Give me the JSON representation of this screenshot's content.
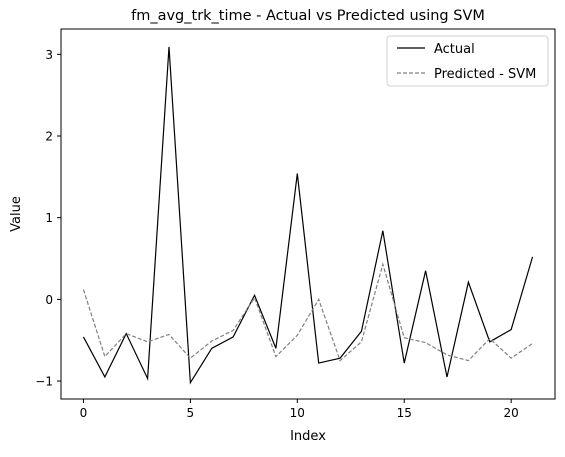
{
  "chart_data": {
    "type": "line",
    "title": "fm_avg_trk_time - Actual vs Predicted using SVM",
    "xlabel": "Index",
    "ylabel": "Value",
    "xlim": [
      -1.05,
      22.05
    ],
    "ylim": [
      -1.22,
      3.31
    ],
    "xticks": [
      0,
      5,
      10,
      15,
      20
    ],
    "yticks": [
      -1,
      0,
      1,
      2,
      3
    ],
    "xtick_labels": [
      "0",
      "5",
      "10",
      "15",
      "20"
    ],
    "ytick_labels": [
      "−1",
      "0",
      "1",
      "2",
      "3"
    ],
    "grid": false,
    "legend_position": "top-right",
    "x": [
      0,
      1,
      2,
      3,
      4,
      5,
      6,
      7,
      8,
      9,
      10,
      11,
      12,
      13,
      14,
      15,
      16,
      17,
      18,
      19,
      20,
      21
    ],
    "series": [
      {
        "name": "Actual",
        "color": "#000000",
        "dash": "solid",
        "values": [
          -0.46,
          -0.95,
          -0.42,
          -0.97,
          3.09,
          -1.02,
          -0.6,
          -0.46,
          0.05,
          -0.6,
          1.54,
          -0.78,
          -0.72,
          -0.39,
          0.84,
          -0.78,
          0.35,
          -0.95,
          0.21,
          -0.52,
          -0.37,
          0.52
        ]
      },
      {
        "name": "Predicted - SVM",
        "color": "#808080",
        "dash": "dashed",
        "values": [
          0.12,
          -0.7,
          -0.42,
          -0.52,
          -0.43,
          -0.72,
          -0.51,
          -0.38,
          0.02,
          -0.7,
          -0.44,
          0.0,
          -0.75,
          -0.52,
          0.43,
          -0.47,
          -0.53,
          -0.68,
          -0.75,
          -0.48,
          -0.72,
          -0.54
        ]
      }
    ]
  }
}
